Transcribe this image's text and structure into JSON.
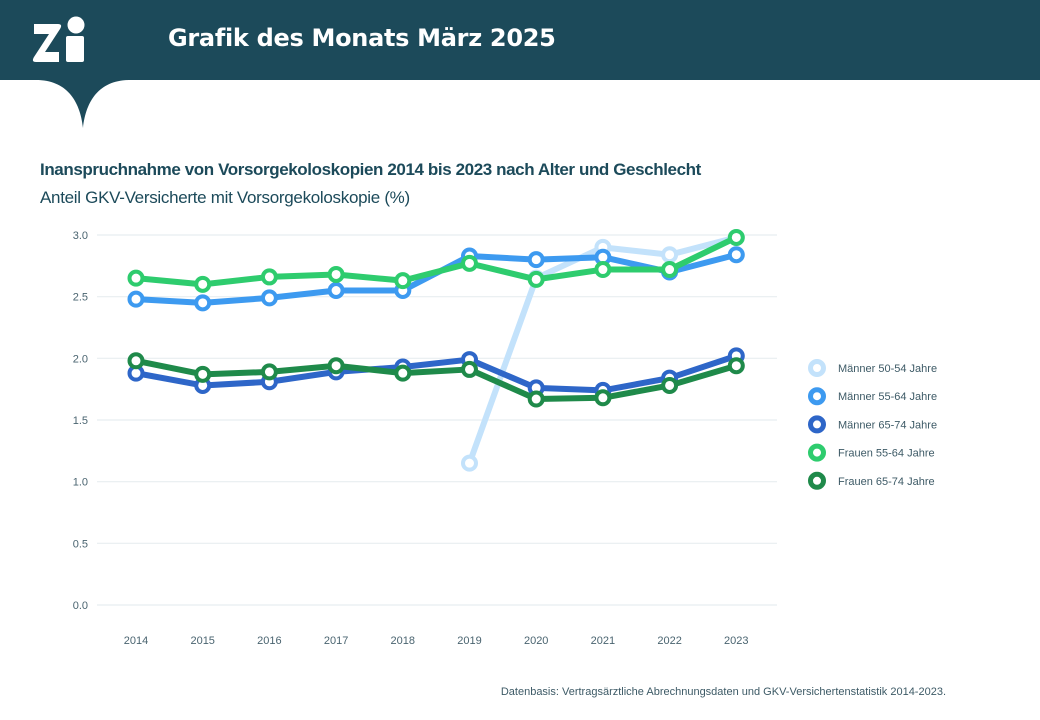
{
  "header": {
    "logo_text": "Zi",
    "title": "Grafik des Monats März 2025"
  },
  "chart_data": {
    "type": "line",
    "title": "Inanspruchnahme von Vorsorgekoloskopien 2014 bis 2023 nach Alter und Geschlecht",
    "subtitle": "Anteil GKV-Versicherte mit Vorsorgekoloskopie (%)",
    "xlabel": "",
    "ylabel": "",
    "x": [
      "2014",
      "2015",
      "2016",
      "2017",
      "2018",
      "2019",
      "2020",
      "2021",
      "2022",
      "2023"
    ],
    "ylim": [
      0,
      3.0
    ],
    "yticks": [
      "0.0",
      "0.5",
      "1.0",
      "1.5",
      "2.0",
      "2.5",
      "3.0"
    ],
    "ytick_values": [
      0,
      0.5,
      1.0,
      1.5,
      2.0,
      2.5,
      3.0
    ],
    "grid": true,
    "legend_position": "right",
    "series": [
      {
        "name": "Männer 50-54 Jahre",
        "color": "#c3e2fb",
        "values": [
          null,
          null,
          null,
          null,
          null,
          1.15,
          2.65,
          2.9,
          2.84,
          2.98
        ]
      },
      {
        "name": "Männer 55-64 Jahre",
        "color": "#3d9af0",
        "values": [
          2.48,
          2.45,
          2.49,
          2.55,
          2.55,
          2.83,
          2.8,
          2.82,
          2.7,
          2.84
        ]
      },
      {
        "name": "Männer 65-74 Jahre",
        "color": "#2e66c8",
        "values": [
          1.88,
          1.78,
          1.81,
          1.89,
          1.93,
          1.99,
          1.76,
          1.74,
          1.84,
          2.02
        ]
      },
      {
        "name": "Frauen 55-64 Jahre",
        "color": "#2ecc6e",
        "values": [
          2.65,
          2.6,
          2.66,
          2.68,
          2.63,
          2.77,
          2.64,
          2.72,
          2.72,
          2.98
        ]
      },
      {
        "name": "Frauen 65-74 Jahre",
        "color": "#1f8a4a",
        "values": [
          1.98,
          1.87,
          1.89,
          1.94,
          1.88,
          1.91,
          1.67,
          1.68,
          1.78,
          1.94
        ]
      }
    ]
  },
  "footer": {
    "source": "Datenbasis: Vertragsärztliche Abrechnungsdaten und GKV-Versichertenstatistik 2014-2023."
  }
}
